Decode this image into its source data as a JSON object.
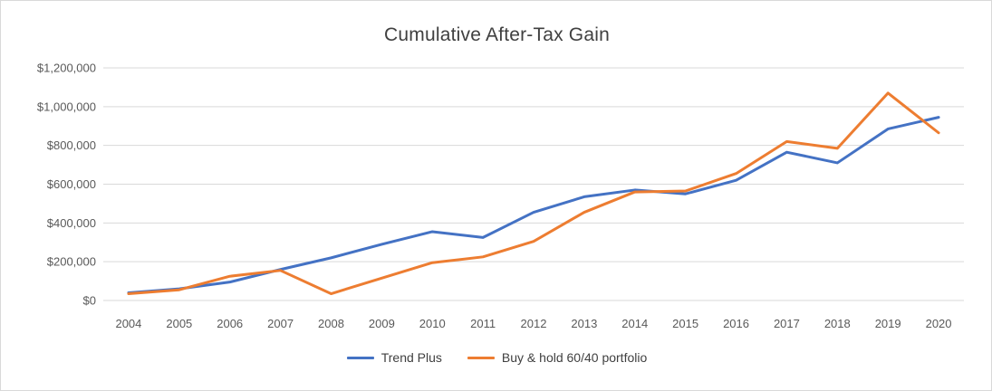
{
  "chart_data": {
    "type": "line",
    "title": "Cumulative After-Tax Gain",
    "x": [
      2004,
      2005,
      2006,
      2007,
      2008,
      2009,
      2010,
      2011,
      2012,
      2013,
      2014,
      2015,
      2016,
      2017,
      2018,
      2019,
      2020
    ],
    "series": [
      {
        "name": "Trend Plus",
        "color": "#4472C4",
        "values": [
          40000,
          60000,
          95000,
          160000,
          220000,
          290000,
          355000,
          325000,
          455000,
          535000,
          570000,
          550000,
          620000,
          765000,
          710000,
          885000,
          945000
        ]
      },
      {
        "name": "Buy & hold 60/40 portfolio",
        "color": "#ED7D31",
        "values": [
          35000,
          55000,
          125000,
          155000,
          35000,
          115000,
          195000,
          225000,
          305000,
          455000,
          560000,
          565000,
          655000,
          820000,
          785000,
          1070000,
          865000
        ]
      }
    ],
    "ylim": [
      0,
      1200000
    ],
    "y_tick_step": 200000,
    "y_tick_labels": [
      "$0",
      "$200,000",
      "$400,000",
      "$600,000",
      "$800,000",
      "$1,000,000",
      "$1,200,000"
    ],
    "grid": true,
    "legend_position": "bottom"
  }
}
